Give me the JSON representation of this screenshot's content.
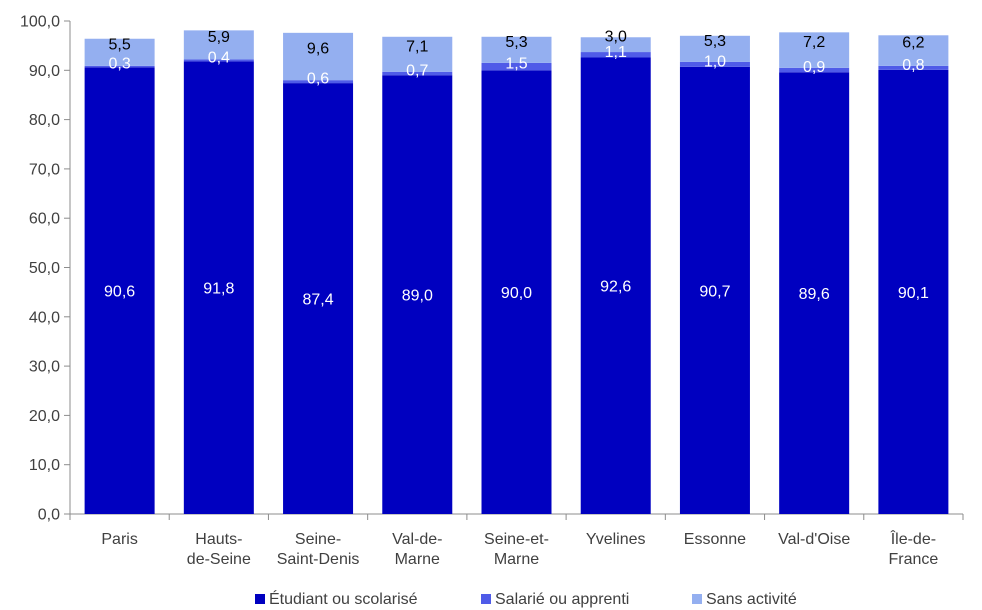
{
  "chart_data": {
    "type": "bar",
    "stacked": true,
    "categories": [
      [
        "Paris"
      ],
      [
        "Hauts-",
        "de-Seine"
      ],
      [
        "Seine-",
        "Saint-Denis"
      ],
      [
        "Val-de-",
        "Marne"
      ],
      [
        "Seine-et-",
        "Marne"
      ],
      [
        "Yvelines"
      ],
      [
        "Essonne"
      ],
      [
        "Val-d'Oise"
      ],
      [
        "Île-de-",
        "France"
      ]
    ],
    "series": [
      {
        "name": "Étudiant ou scolarisé",
        "color": "#0000C0",
        "label_color": "#ffffff",
        "values": [
          90.6,
          91.8,
          87.4,
          89.0,
          90.0,
          92.6,
          90.7,
          89.6,
          90.1
        ],
        "labels": [
          "90,6",
          "91,8",
          "87,4",
          "89,0",
          "90,0",
          "92,6",
          "90,7",
          "89,6",
          "90,1"
        ]
      },
      {
        "name": "Salarié ou apprenti",
        "color": "#4F5BE8",
        "label_color": "#ffffff",
        "values": [
          0.3,
          0.4,
          0.6,
          0.7,
          1.5,
          1.1,
          1.0,
          0.9,
          0.8
        ],
        "labels": [
          "0,3",
          "0,4",
          "0,6",
          "0,7",
          "1,5",
          "1,1",
          "1,0",
          "0,9",
          "0,8"
        ]
      },
      {
        "name": "Sans activité",
        "color": "#94AFF0",
        "label_color": "#000000",
        "values": [
          5.5,
          5.9,
          9.6,
          7.1,
          5.3,
          3.0,
          5.3,
          7.2,
          6.2
        ],
        "labels": [
          "5,5",
          "5,9",
          "9,6",
          "7,1",
          "5,3",
          "3,0",
          "5,3",
          "7,2",
          "6,2"
        ]
      }
    ],
    "ylim": [
      0,
      100
    ],
    "yticks": [
      0,
      10,
      20,
      30,
      40,
      50,
      60,
      70,
      80,
      90,
      100
    ],
    "ytick_labels": [
      "0,0",
      "10,0",
      "20,0",
      "30,0",
      "40,0",
      "50,0",
      "60,0",
      "70,0",
      "80,0",
      "90,0",
      "100,0"
    ],
    "grid": false,
    "legend_position": "bottom"
  }
}
